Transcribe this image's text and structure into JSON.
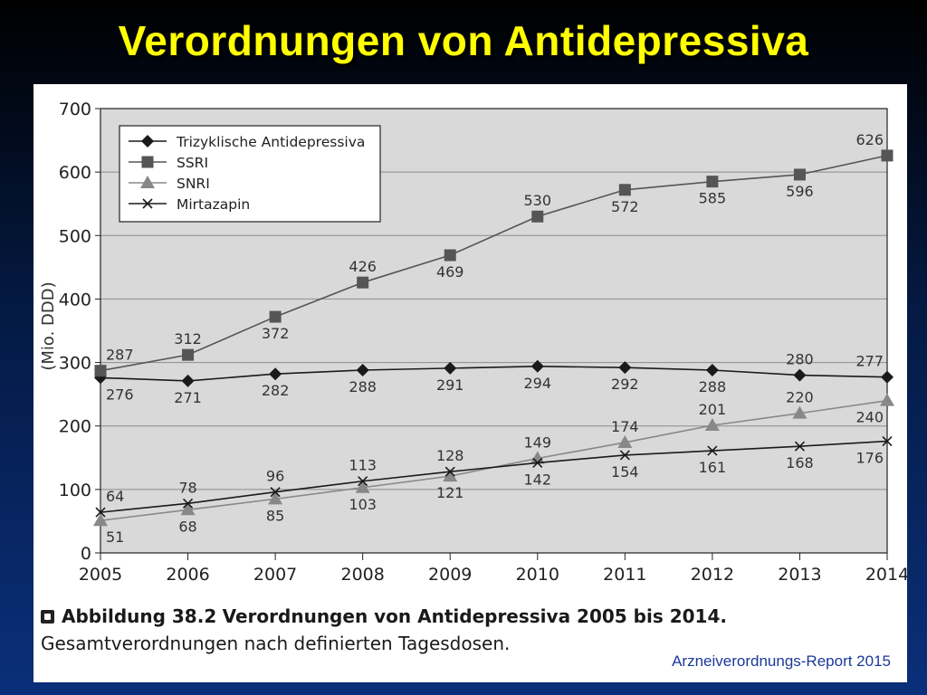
{
  "slide": {
    "title": "Verordnungen von Antidepressiva",
    "caption": {
      "label": "Abbildung 38.2",
      "title": "Verordnungen von Antidepressiva 2005 bis 2014.",
      "text": "Gesamtverordnungen nach definierten Tagesdosen."
    },
    "source": "Arzneiverordnungs-Report 2015"
  },
  "chart_data": {
    "type": "line",
    "title": "",
    "xlabel": "",
    "ylabel": "(Mio. DDD)",
    "x": [
      2005,
      2006,
      2007,
      2008,
      2009,
      2010,
      2011,
      2012,
      2013,
      2014
    ],
    "xlim": [
      2005,
      2014
    ],
    "ylim": [
      0,
      700
    ],
    "yticks": [
      0,
      100,
      200,
      300,
      400,
      500,
      600,
      700
    ],
    "grid": true,
    "legend_position": "top-left",
    "series": [
      {
        "name": "Trizyklische Antidepressiva",
        "marker": "diamond",
        "color": "#1a1a1a",
        "values": [
          276,
          271,
          282,
          288,
          291,
          294,
          292,
          288,
          280,
          277
        ],
        "label_positions": [
          "below",
          "below",
          "below",
          "below",
          "below",
          "below",
          "below",
          "below",
          "above",
          "above"
        ]
      },
      {
        "name": "SSRI",
        "marker": "square",
        "color": "#555555",
        "values": [
          287,
          312,
          372,
          426,
          469,
          530,
          572,
          585,
          596,
          626
        ],
        "label_positions": [
          "above",
          "above",
          "below",
          "above",
          "below",
          "above",
          "below",
          "below",
          "below",
          "above"
        ]
      },
      {
        "name": "SNRI",
        "marker": "triangle",
        "color": "#888888",
        "values": [
          51,
          68,
          85,
          103,
          121,
          149,
          174,
          201,
          220,
          240
        ],
        "label_positions": [
          "below",
          "below",
          "below",
          "below",
          "below",
          "above",
          "above",
          "above",
          "above",
          "below"
        ]
      },
      {
        "name": "Mirtazapin",
        "marker": "cross",
        "color": "#1a1a1a",
        "values": [
          64,
          78,
          96,
          113,
          128,
          142,
          154,
          161,
          168,
          176
        ],
        "label_positions": [
          "above",
          "above",
          "above",
          "above",
          "above",
          "below",
          "below",
          "below",
          "below",
          "below"
        ]
      }
    ]
  }
}
